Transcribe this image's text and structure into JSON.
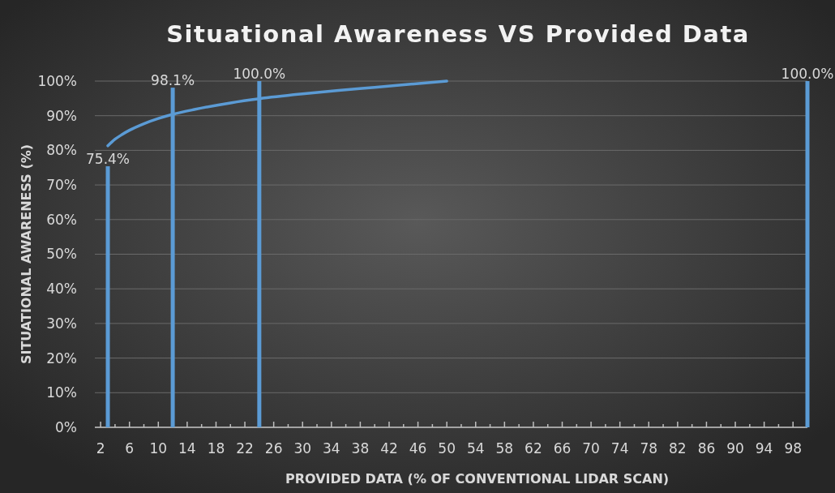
{
  "chart_data": {
    "type": "bar",
    "title": "Situational Awareness VS Provided Data",
    "xlabel": "PROVIDED DATA (% OF CONVENTIONAL LIDAR SCAN)",
    "ylabel": "SITUATIONAL AWARENESS (%)",
    "x": [
      3,
      12,
      24,
      100
    ],
    "series": [
      {
        "color": "#5b9bd5",
        "values": [
          75.4,
          98.1,
          100,
          100
        ],
        "value_labels": [
          "75.4%",
          "98.1%",
          "100.0%",
          "100.0%"
        ]
      },
      {
        "type": "line",
        "color": "#5b9bd5",
        "x": [
          3,
          4,
          5,
          6,
          8,
          10,
          12,
          15,
          20,
          24,
          30,
          35,
          40,
          45,
          50
        ],
        "values": [
          81.3,
          83.2,
          84.6,
          85.8,
          87.7,
          89.2,
          90.4,
          91.8,
          93.7,
          94.9,
          96.3,
          97.3,
          98.2,
          99.1,
          100
        ]
      }
    ],
    "xlim": [
      1.2,
      100
    ],
    "xticks": [
      {
        "value": 2,
        "label": "2"
      },
      {
        "value": 4,
        "label": null
      },
      {
        "value": 6,
        "label": "6"
      },
      {
        "value": 8,
        "label": null
      },
      {
        "value": 10,
        "label": "10"
      },
      {
        "value": 12,
        "label": null
      },
      {
        "value": 14,
        "label": "14"
      },
      {
        "value": 16,
        "label": null
      },
      {
        "value": 18,
        "label": "18"
      },
      {
        "value": 20,
        "label": null
      },
      {
        "value": 22,
        "label": "22"
      },
      {
        "value": 24,
        "label": null
      },
      {
        "value": 26,
        "label": "26"
      },
      {
        "value": 28,
        "label": null
      },
      {
        "value": 30,
        "label": "30"
      },
      {
        "value": 32,
        "label": null
      },
      {
        "value": 34,
        "label": "34"
      },
      {
        "value": 36,
        "label": null
      },
      {
        "value": 38,
        "label": "38"
      },
      {
        "value": 40,
        "label": null
      },
      {
        "value": 42,
        "label": "42"
      },
      {
        "value": 44,
        "label": null
      },
      {
        "value": 46,
        "label": "46"
      },
      {
        "value": 48,
        "label": null
      },
      {
        "value": 50,
        "label": "50"
      },
      {
        "value": 52,
        "label": null
      },
      {
        "value": 54,
        "label": "54"
      },
      {
        "value": 56,
        "label": null
      },
      {
        "value": 58,
        "label": "58"
      },
      {
        "value": 60,
        "label": null
      },
      {
        "value": 62,
        "label": "62"
      },
      {
        "value": 64,
        "label": null
      },
      {
        "value": 66,
        "label": "66"
      },
      {
        "value": 68,
        "label": null
      },
      {
        "value": 70,
        "label": "70"
      },
      {
        "value": 72,
        "label": null
      },
      {
        "value": 74,
        "label": "74"
      },
      {
        "value": 76,
        "label": null
      },
      {
        "value": 78,
        "label": "78"
      },
      {
        "value": 80,
        "label": null
      },
      {
        "value": 82,
        "label": "82"
      },
      {
        "value": 84,
        "label": null
      },
      {
        "value": 86,
        "label": "86"
      },
      {
        "value": 88,
        "label": null
      },
      {
        "value": 90,
        "label": "90"
      },
      {
        "value": 92,
        "label": null
      },
      {
        "value": 94,
        "label": "94"
      },
      {
        "value": 96,
        "label": null
      },
      {
        "value": 98,
        "label": "98"
      }
    ],
    "ylim": [
      0,
      100
    ],
    "yticks": [
      {
        "value": 0,
        "label": "0%"
      },
      {
        "value": 10,
        "label": "10%"
      },
      {
        "value": 20,
        "label": "20%"
      },
      {
        "value": 30,
        "label": "30%"
      },
      {
        "value": 40,
        "label": "40%"
      },
      {
        "value": 50,
        "label": "50%"
      },
      {
        "value": 60,
        "label": "60%"
      },
      {
        "value": 70,
        "label": "70%"
      },
      {
        "value": 80,
        "label": "80%"
      },
      {
        "value": 90,
        "label": "90%"
      },
      {
        "value": 100,
        "label": "100%"
      }
    ],
    "grid": "y",
    "marker": "none",
    "line_style": "solid"
  }
}
